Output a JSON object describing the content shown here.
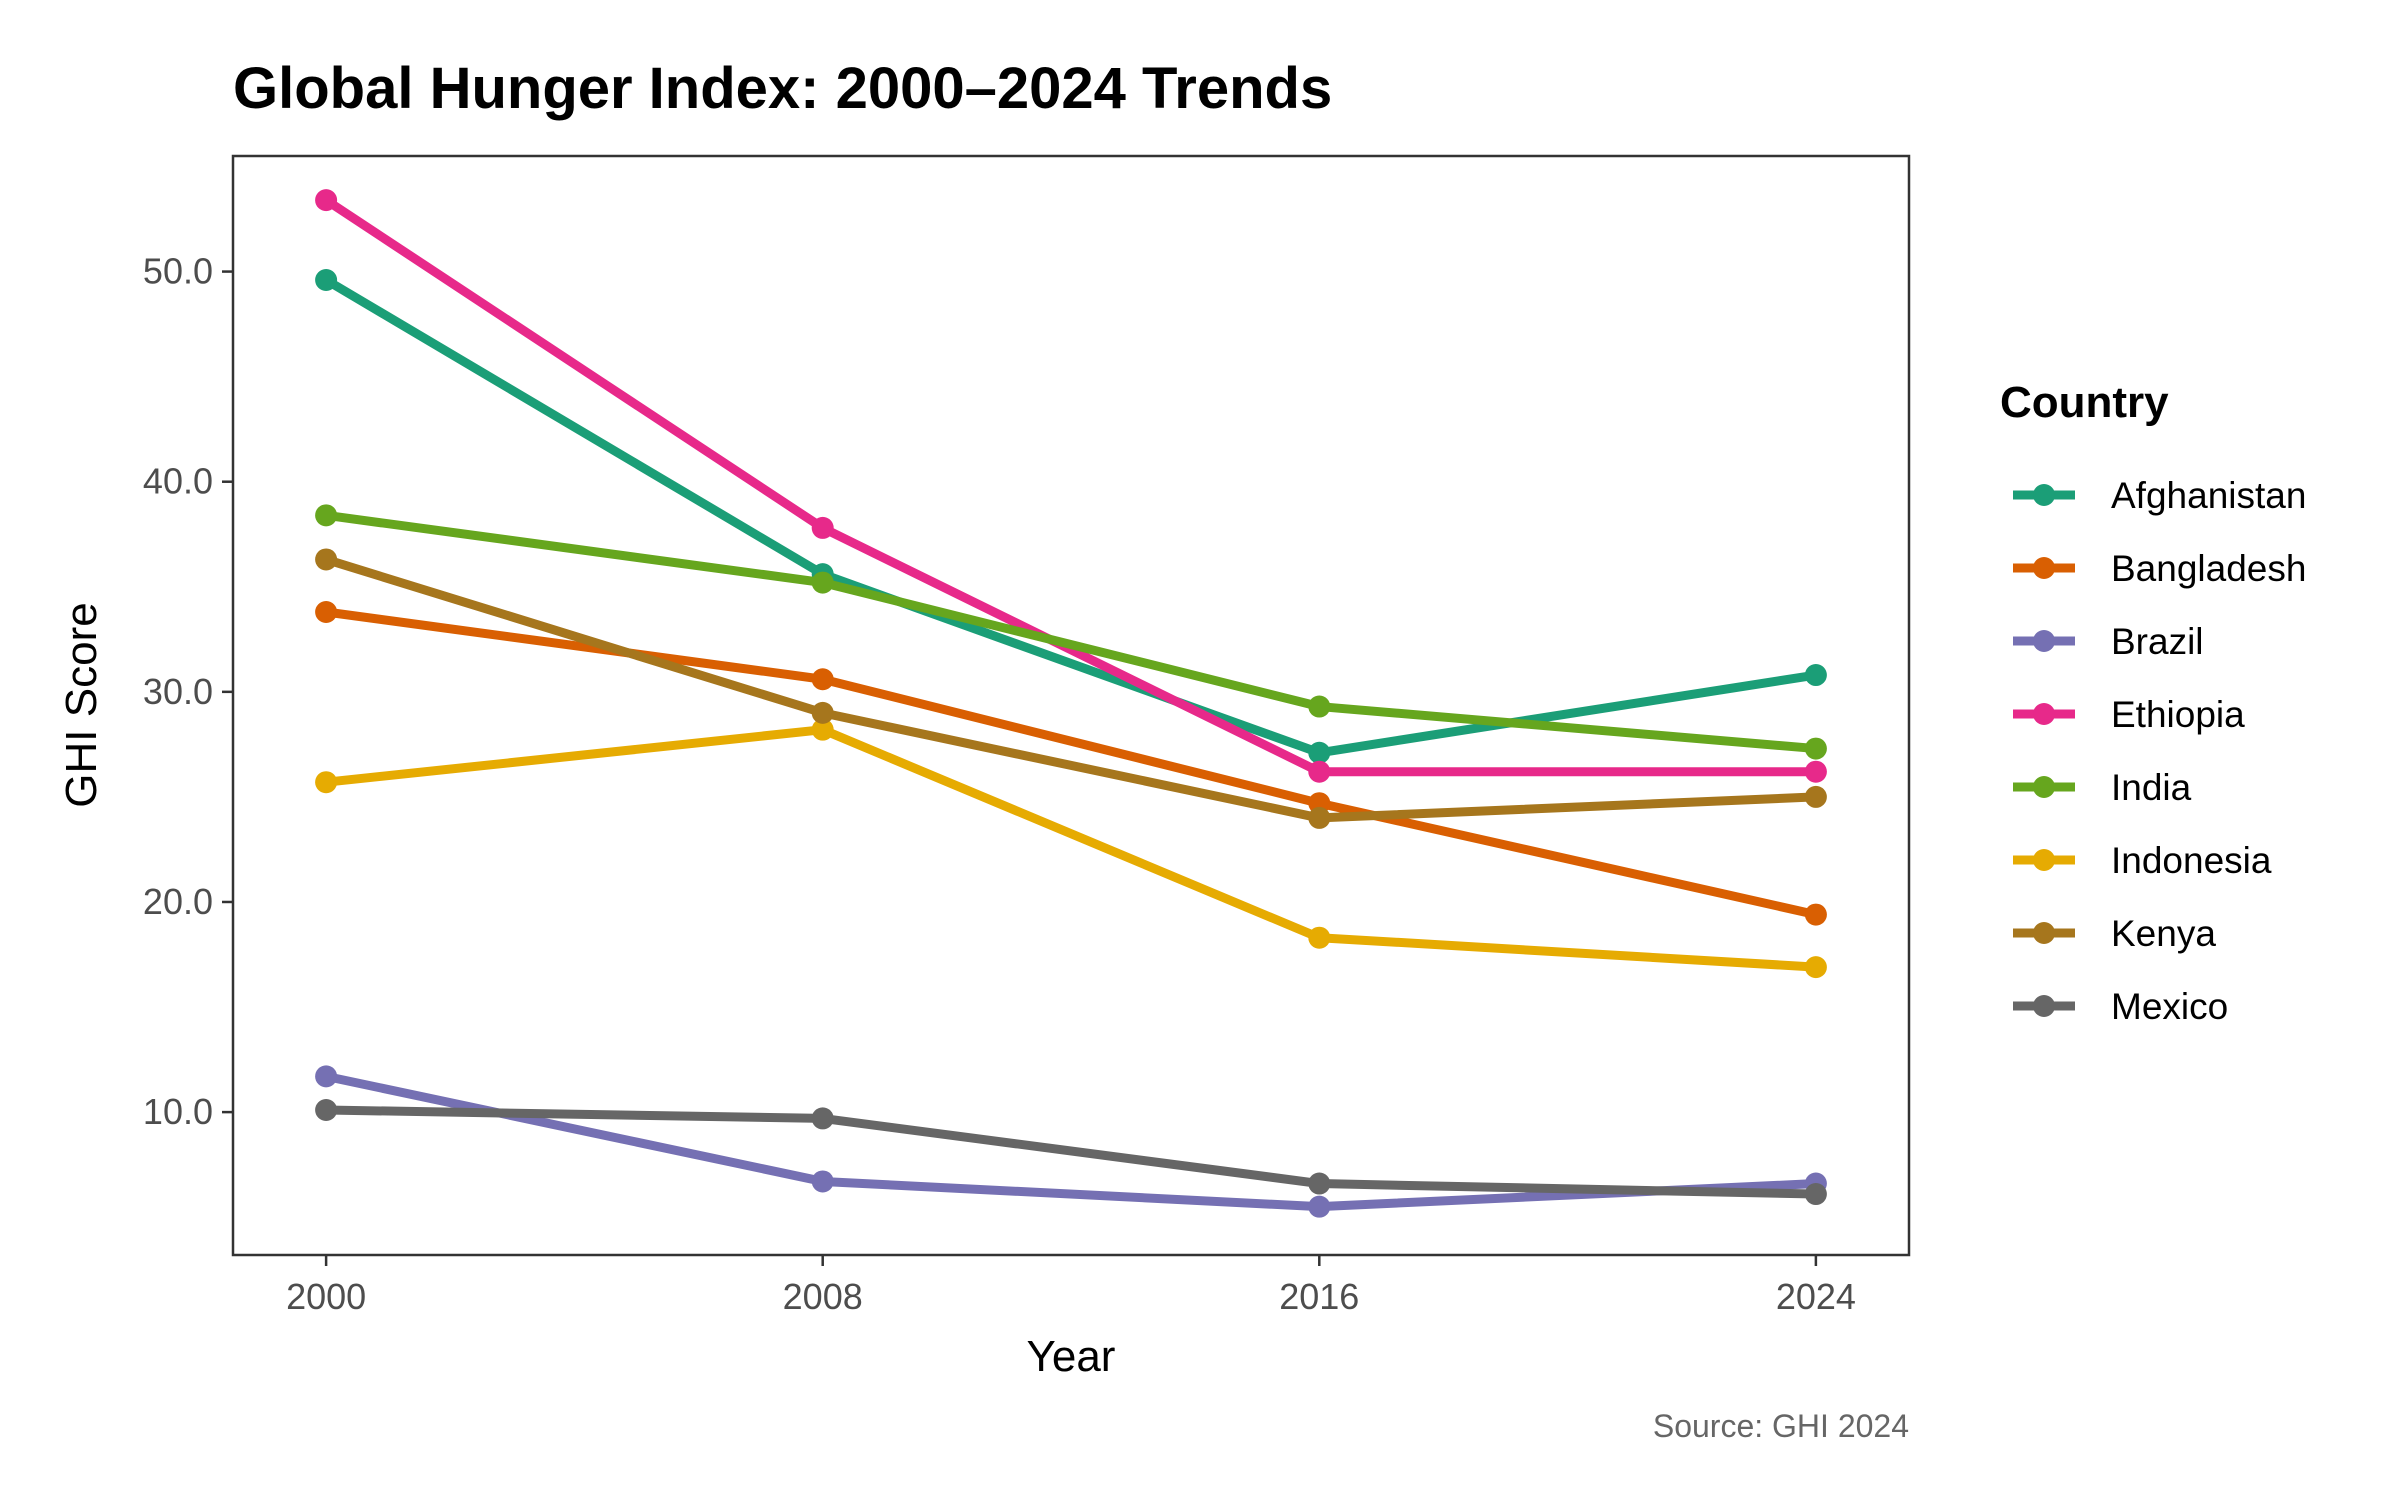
{
  "chart_data": {
    "type": "line",
    "title": "Global Hunger Index: 2000–2024 Trends",
    "xlabel": "Year",
    "ylabel": "GHI Score",
    "caption": "Source: GHI 2024",
    "legend_title": "Country",
    "legend_position": "right",
    "grid": false,
    "x": [
      2000,
      2008,
      2016,
      2024
    ],
    "x_tick_labels": [
      "2000",
      "2008",
      "2016",
      "2024"
    ],
    "y_ticks": [
      10,
      20,
      30,
      40,
      50
    ],
    "y_tick_labels": [
      "10.0",
      "20.0",
      "30.0",
      "40.0",
      "50.0"
    ],
    "xlim": [
      1998.5,
      2025.5
    ],
    "ylim": [
      3.2,
      55.5
    ],
    "series": [
      {
        "name": "Afghanistan",
        "color": "#1b9e77",
        "values": [
          49.6,
          35.6,
          27.1,
          30.8
        ]
      },
      {
        "name": "Bangladesh",
        "color": "#d95f02",
        "values": [
          33.8,
          30.6,
          24.7,
          19.4
        ]
      },
      {
        "name": "Brazil",
        "color": "#7570b3",
        "values": [
          11.7,
          6.7,
          5.5,
          6.6
        ]
      },
      {
        "name": "Ethiopia",
        "color": "#e7298a",
        "values": [
          53.4,
          37.8,
          26.2,
          26.2
        ]
      },
      {
        "name": "India",
        "color": "#66a61e",
        "values": [
          38.4,
          35.2,
          29.3,
          27.3
        ]
      },
      {
        "name": "Indonesia",
        "color": "#e6ab02",
        "values": [
          25.7,
          28.2,
          18.3,
          16.9
        ]
      },
      {
        "name": "Kenya",
        "color": "#a6761d",
        "values": [
          36.3,
          29.0,
          24.0,
          25.0
        ]
      },
      {
        "name": "Mexico",
        "color": "#666666",
        "values": [
          10.1,
          9.7,
          6.6,
          6.1
        ]
      }
    ]
  }
}
